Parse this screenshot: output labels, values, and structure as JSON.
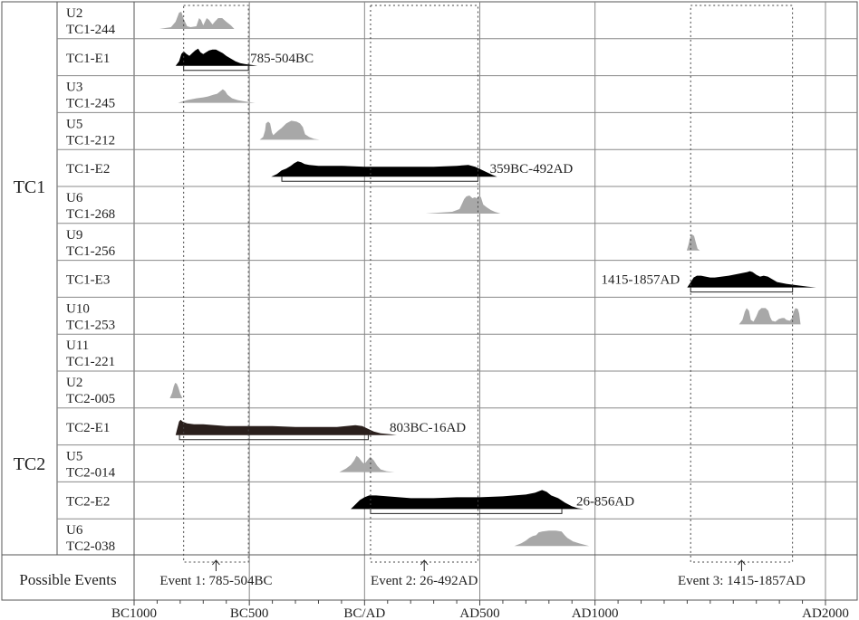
{
  "chart_data": {
    "type": "area",
    "title": "",
    "xlabel": "",
    "ylabel": "",
    "x_axis": {
      "min": -1000,
      "max": 2000,
      "ticks": [
        {
          "value": -1000,
          "label": "BC1000"
        },
        {
          "value": -500,
          "label": "BC500"
        },
        {
          "value": 0,
          "label": "BC/AD"
        },
        {
          "value": 500,
          "label": "AD500"
        },
        {
          "value": 1000,
          "label": "AD1000"
        },
        {
          "value": 2000,
          "label": "AD2000"
        }
      ],
      "minor_tick_step": 100
    },
    "vertical_gridlines": [
      -1000,
      -500,
      0,
      500,
      1000,
      2000
    ],
    "groups": [
      {
        "label": "TC1",
        "row_start": 0,
        "row_end": 9
      },
      {
        "label": "TC2",
        "row_start": 10,
        "row_end": 14
      }
    ],
    "events_row_label": "Possible Events",
    "rows": [
      {
        "label_lines": [
          "U2",
          "TC1-244"
        ],
        "kind": "sample",
        "color": "#a8a8a8",
        "density": [
          [
            -890,
            0
          ],
          [
            -840,
            2
          ],
          [
            -820,
            8
          ],
          [
            -805,
            18
          ],
          [
            -795,
            19
          ],
          [
            -785,
            11
          ],
          [
            -770,
            3
          ],
          [
            -755,
            2
          ],
          [
            -730,
            3
          ],
          [
            -718,
            12
          ],
          [
            -710,
            10
          ],
          [
            -700,
            4
          ],
          [
            -685,
            12
          ],
          [
            -675,
            10
          ],
          [
            -660,
            5
          ],
          [
            -650,
            8
          ],
          [
            -635,
            12
          ],
          [
            -618,
            12
          ],
          [
            -600,
            8
          ],
          [
            -580,
            4
          ],
          [
            -565,
            0
          ]
        ]
      },
      {
        "label_lines": [
          "TC1-E1"
        ],
        "kind": "event",
        "color": "#000000",
        "density": [
          [
            -820,
            0
          ],
          [
            -805,
            5
          ],
          [
            -795,
            13
          ],
          [
            -785,
            16
          ],
          [
            -772,
            13
          ],
          [
            -760,
            11
          ],
          [
            -748,
            14
          ],
          [
            -735,
            17
          ],
          [
            -722,
            19
          ],
          [
            -712,
            15
          ],
          [
            -700,
            13
          ],
          [
            -688,
            15
          ],
          [
            -675,
            17
          ],
          [
            -660,
            18
          ],
          [
            -645,
            18
          ],
          [
            -630,
            16
          ],
          [
            -615,
            14
          ],
          [
            -600,
            11
          ],
          [
            -580,
            8
          ],
          [
            -560,
            5
          ],
          [
            -540,
            3
          ],
          [
            -520,
            2
          ],
          [
            -490,
            1
          ],
          [
            -465,
            0
          ]
        ],
        "range": [
          -785,
          -504
        ],
        "range_label": "785-504BC"
      },
      {
        "label_lines": [
          "U3",
          "TC1-245"
        ],
        "kind": "sample",
        "color": "#a8a8a8",
        "density": [
          [
            -810,
            0
          ],
          [
            -770,
            3
          ],
          [
            -730,
            5
          ],
          [
            -700,
            6
          ],
          [
            -680,
            7
          ],
          [
            -655,
            9
          ],
          [
            -640,
            10
          ],
          [
            -625,
            13
          ],
          [
            -615,
            15
          ],
          [
            -605,
            13
          ],
          [
            -595,
            9
          ],
          [
            -575,
            5
          ],
          [
            -550,
            3
          ],
          [
            -530,
            2
          ],
          [
            -505,
            1
          ],
          [
            -475,
            0
          ]
        ]
      },
      {
        "label_lines": [
          "U5",
          "TC1-212"
        ],
        "kind": "sample",
        "color": "#a8a8a8",
        "density": [
          [
            -455,
            0
          ],
          [
            -440,
            3
          ],
          [
            -432,
            10
          ],
          [
            -428,
            18
          ],
          [
            -418,
            20
          ],
          [
            -410,
            18
          ],
          [
            -402,
            8
          ],
          [
            -396,
            5
          ],
          [
            -388,
            7
          ],
          [
            -375,
            10
          ],
          [
            -360,
            13
          ],
          [
            -340,
            18
          ],
          [
            -318,
            21
          ],
          [
            -295,
            20
          ],
          [
            -280,
            18
          ],
          [
            -268,
            14
          ],
          [
            -258,
            6
          ],
          [
            -240,
            3
          ],
          [
            -220,
            1
          ],
          [
            -195,
            0
          ]
        ]
      },
      {
        "label_lines": [
          "TC1-E2"
        ],
        "kind": "event",
        "color": "#000000",
        "density": [
          [
            -405,
            0
          ],
          [
            -380,
            3
          ],
          [
            -360,
            7
          ],
          [
            -340,
            9
          ],
          [
            -320,
            12
          ],
          [
            -305,
            15
          ],
          [
            -290,
            17
          ],
          [
            -275,
            16
          ],
          [
            -260,
            14
          ],
          [
            -240,
            13
          ],
          [
            -200,
            12
          ],
          [
            -100,
            12
          ],
          [
            0,
            11
          ],
          [
            100,
            11
          ],
          [
            200,
            11
          ],
          [
            300,
            11
          ],
          [
            400,
            12
          ],
          [
            450,
            13
          ],
          [
            480,
            11
          ],
          [
            505,
            8
          ],
          [
            530,
            5
          ],
          [
            555,
            2
          ],
          [
            575,
            0
          ]
        ],
        "range": [
          -359,
          492
        ],
        "range_label": "359BC-492AD"
      },
      {
        "label_lines": [
          "U6",
          "TC1-268"
        ],
        "kind": "sample",
        "color": "#a8a8a8",
        "density": [
          [
            265,
            0
          ],
          [
            320,
            1
          ],
          [
            380,
            2
          ],
          [
            412,
            5
          ],
          [
            425,
            12
          ],
          [
            432,
            16
          ],
          [
            442,
            19
          ],
          [
            455,
            20
          ],
          [
            468,
            17
          ],
          [
            478,
            18
          ],
          [
            488,
            17
          ],
          [
            498,
            20
          ],
          [
            505,
            18
          ],
          [
            515,
            10
          ],
          [
            530,
            7
          ],
          [
            548,
            4
          ],
          [
            565,
            2
          ],
          [
            590,
            0
          ]
        ]
      },
      {
        "label_lines": [
          "U9",
          "TC1-256"
        ],
        "kind": "sample",
        "color": "#a8a8a8",
        "density": [
          [
            1398,
            0
          ],
          [
            1405,
            6
          ],
          [
            1412,
            14
          ],
          [
            1420,
            18
          ],
          [
            1430,
            16
          ],
          [
            1438,
            8
          ],
          [
            1445,
            2
          ],
          [
            1455,
            0
          ]
        ]
      },
      {
        "label_lines": [
          "TC1-E3"
        ],
        "kind": "event",
        "color": "#000000",
        "density": [
          [
            1400,
            0
          ],
          [
            1418,
            7
          ],
          [
            1428,
            11
          ],
          [
            1442,
            13
          ],
          [
            1460,
            13
          ],
          [
            1480,
            12
          ],
          [
            1500,
            11
          ],
          [
            1520,
            11
          ],
          [
            1550,
            12
          ],
          [
            1580,
            13
          ],
          [
            1600,
            14
          ],
          [
            1620,
            15
          ],
          [
            1640,
            16
          ],
          [
            1660,
            17
          ],
          [
            1672,
            18
          ],
          [
            1684,
            17
          ],
          [
            1700,
            14
          ],
          [
            1716,
            12
          ],
          [
            1732,
            13
          ],
          [
            1750,
            12
          ],
          [
            1770,
            9
          ],
          [
            1790,
            6
          ],
          [
            1810,
            5
          ],
          [
            1830,
            4
          ],
          [
            1860,
            3
          ],
          [
            1890,
            2
          ],
          [
            1920,
            1
          ],
          [
            1960,
            0
          ]
        ],
        "range": [
          1415,
          1857
        ],
        "range_label": "1415-1857AD"
      },
      {
        "label_lines": [
          "U10",
          "TC1-253"
        ],
        "kind": "sample",
        "color": "#a8a8a8",
        "density": [
          [
            1625,
            0
          ],
          [
            1640,
            5
          ],
          [
            1650,
            14
          ],
          [
            1658,
            18
          ],
          [
            1668,
            15
          ],
          [
            1676,
            5
          ],
          [
            1688,
            3
          ],
          [
            1700,
            9
          ],
          [
            1710,
            15
          ],
          [
            1722,
            18
          ],
          [
            1740,
            18
          ],
          [
            1752,
            15
          ],
          [
            1760,
            8
          ],
          [
            1768,
            4
          ],
          [
            1782,
            3
          ],
          [
            1798,
            6
          ],
          [
            1812,
            7
          ],
          [
            1822,
            7
          ],
          [
            1830,
            5
          ],
          [
            1845,
            4
          ],
          [
            1855,
            7
          ],
          [
            1862,
            14
          ],
          [
            1870,
            18
          ],
          [
            1880,
            17
          ],
          [
            1886,
            12
          ],
          [
            1892,
            0
          ]
        ]
      },
      {
        "label_lines": [
          "U11",
          "TC1-221"
        ],
        "kind": "empty"
      },
      {
        "label_lines": [
          "U2",
          "TC2-005"
        ],
        "kind": "sample",
        "color": "#a8a8a8",
        "density": [
          [
            -845,
            0
          ],
          [
            -835,
            6
          ],
          [
            -828,
            13
          ],
          [
            -822,
            17
          ],
          [
            -815,
            16
          ],
          [
            -808,
            12
          ],
          [
            -800,
            5
          ],
          [
            -790,
            0
          ]
        ]
      },
      {
        "label_lines": [
          "TC2-E1"
        ],
        "kind": "event",
        "color": "#2a1f1c",
        "density": [
          [
            -820,
            0
          ],
          [
            -812,
            8
          ],
          [
            -805,
            15
          ],
          [
            -798,
            17
          ],
          [
            -790,
            15
          ],
          [
            -770,
            13
          ],
          [
            -740,
            12
          ],
          [
            -700,
            12
          ],
          [
            -650,
            11
          ],
          [
            -600,
            10
          ],
          [
            -500,
            10
          ],
          [
            -400,
            10
          ],
          [
            -300,
            9
          ],
          [
            -200,
            9
          ],
          [
            -120,
            9
          ],
          [
            -80,
            10
          ],
          [
            -40,
            11
          ],
          [
            -10,
            10
          ],
          [
            15,
            7
          ],
          [
            40,
            4
          ],
          [
            70,
            2
          ],
          [
            110,
            1
          ],
          [
            140,
            0
          ]
        ],
        "range": [
          -803,
          16
        ],
        "range_label": "803BC-16AD"
      },
      {
        "label_lines": [
          "U5",
          "TC2-014"
        ],
        "kind": "sample",
        "color": "#a8a8a8",
        "density": [
          [
            -110,
            0
          ],
          [
            -80,
            4
          ],
          [
            -60,
            8
          ],
          [
            -45,
            13
          ],
          [
            -35,
            18
          ],
          [
            -25,
            16
          ],
          [
            -10,
            11
          ],
          [
            0,
            9
          ],
          [
            15,
            14
          ],
          [
            25,
            17
          ],
          [
            40,
            13
          ],
          [
            55,
            7
          ],
          [
            70,
            3
          ],
          [
            95,
            1
          ],
          [
            130,
            0
          ]
        ]
      },
      {
        "label_lines": [
          "TC2-E2"
        ],
        "kind": "event",
        "color": "#000000",
        "density": [
          [
            -60,
            0
          ],
          [
            -40,
            5
          ],
          [
            -20,
            10
          ],
          [
            0,
            13
          ],
          [
            20,
            15
          ],
          [
            50,
            15
          ],
          [
            100,
            14
          ],
          [
            150,
            13
          ],
          [
            200,
            12
          ],
          [
            300,
            12
          ],
          [
            400,
            13
          ],
          [
            500,
            13
          ],
          [
            600,
            14
          ],
          [
            650,
            15
          ],
          [
            700,
            16
          ],
          [
            740,
            18
          ],
          [
            770,
            21
          ],
          [
            790,
            19
          ],
          [
            810,
            15
          ],
          [
            840,
            12
          ],
          [
            870,
            7
          ],
          [
            900,
            3
          ],
          [
            925,
            1
          ],
          [
            950,
            0
          ]
        ],
        "range": [
          26,
          856
        ],
        "range_label": "26-856AD"
      },
      {
        "label_lines": [
          "U6",
          "TC2-038"
        ],
        "kind": "sample",
        "color": "#a8a8a8",
        "density": [
          [
            650,
            0
          ],
          [
            680,
            3
          ],
          [
            700,
            6
          ],
          [
            715,
            9
          ],
          [
            730,
            11
          ],
          [
            745,
            12
          ],
          [
            755,
            15
          ],
          [
            770,
            16
          ],
          [
            800,
            17
          ],
          [
            830,
            17
          ],
          [
            855,
            16
          ],
          [
            868,
            12
          ],
          [
            880,
            9
          ],
          [
            905,
            5
          ],
          [
            930,
            3
          ],
          [
            975,
            0
          ]
        ]
      }
    ],
    "event_windows": [
      {
        "start": -785,
        "end": -504,
        "label": "Event 1: 785-504BC"
      },
      {
        "start": 26,
        "end": 492,
        "label": "Event  2: 26-492AD"
      },
      {
        "start": 1415,
        "end": 1857,
        "label": "Event  3: 1415-1857AD"
      }
    ],
    "grid": true,
    "legend": "none"
  }
}
